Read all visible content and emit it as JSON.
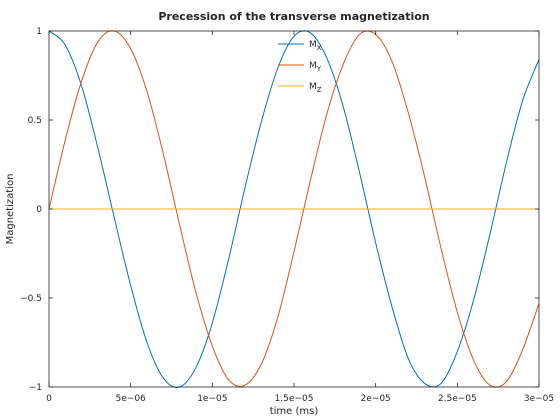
{
  "chart_data": {
    "type": "line",
    "title": "Precession of the transverse magnetization",
    "xlabel": "time (ms)",
    "ylabel": "Magnetization",
    "xlim": [
      0,
      3e-05
    ],
    "ylim": [
      -1,
      1
    ],
    "grid": false,
    "legend_position": "top-center",
    "x_ticks": [
      {
        "value": 0,
        "label": "0"
      },
      {
        "value": 5e-06,
        "label": "5e−06"
      },
      {
        "value": 1e-05,
        "label": "1e−05"
      },
      {
        "value": 1.5e-05,
        "label": "1.5e−05"
      },
      {
        "value": 2e-05,
        "label": "2e−05"
      },
      {
        "value": 2.5e-05,
        "label": "2.5e−05"
      },
      {
        "value": 3e-05,
        "label": "3e−05"
      }
    ],
    "y_ticks": [
      {
        "value": -1,
        "label": "−1"
      },
      {
        "value": -0.5,
        "label": "−0.5"
      },
      {
        "value": 0,
        "label": "0"
      },
      {
        "value": 0.5,
        "label": "0.5"
      },
      {
        "value": 1,
        "label": "1"
      }
    ],
    "series": [
      {
        "name": "M",
        "subscript": "X",
        "color": "#0072bd",
        "x": [
          0,
          1e-06,
          2e-06,
          3e-06,
          4e-06,
          5e-06,
          6e-06,
          7e-06,
          8e-06,
          9e-06,
          1e-05,
          1.1e-05,
          1.2e-05,
          1.3e-05,
          1.4e-05,
          1.5e-05,
          1.6e-05,
          1.7e-05,
          1.8e-05,
          1.9e-05,
          2e-05,
          2.1e-05,
          2.2e-05,
          2.3e-05,
          2.4e-05,
          2.5e-05,
          2.6e-05,
          2.7e-05,
          2.8e-05,
          2.9e-05,
          3e-05
        ],
        "y": [
          1,
          0.92,
          0.69,
          0.34,
          -0.05,
          -0.43,
          -0.75,
          -0.95,
          -1,
          -0.89,
          -0.64,
          -0.28,
          0.12,
          0.49,
          0.79,
          0.97,
          0.99,
          0.85,
          0.58,
          0.21,
          -0.19,
          -0.55,
          -0.84,
          -0.98,
          -0.98,
          -0.8,
          -0.51,
          -0.14,
          0.26,
          0.61,
          0.84
        ]
      },
      {
        "name": "M",
        "subscript": "Y",
        "color": "#d95319",
        "x": [
          0,
          1e-06,
          2e-06,
          3e-06,
          4e-06,
          5e-06,
          6e-06,
          7e-06,
          8e-06,
          9e-06,
          1e-05,
          1.1e-05,
          1.2e-05,
          1.3e-05,
          1.4e-05,
          1.5e-05,
          1.6e-05,
          1.7e-05,
          1.8e-05,
          1.9e-05,
          2e-05,
          2.1e-05,
          2.2e-05,
          2.3e-05,
          2.4e-05,
          2.5e-05,
          2.6e-05,
          2.7e-05,
          2.8e-05,
          2.9e-05,
          3e-05
        ],
        "y": [
          0,
          0.39,
          0.72,
          0.94,
          1,
          0.9,
          0.66,
          0.31,
          -0.09,
          -0.47,
          -0.77,
          -0.96,
          -0.99,
          -0.87,
          -0.61,
          -0.24,
          0.16,
          0.53,
          0.81,
          0.98,
          0.98,
          0.83,
          0.54,
          0.18,
          -0.22,
          -0.58,
          -0.85,
          -0.99,
          -0.97,
          -0.79,
          -0.53
        ]
      },
      {
        "name": "M",
        "subscript": "Z",
        "color": "#edb120",
        "x": [
          0,
          3e-05
        ],
        "y": [
          0,
          0
        ]
      }
    ]
  }
}
